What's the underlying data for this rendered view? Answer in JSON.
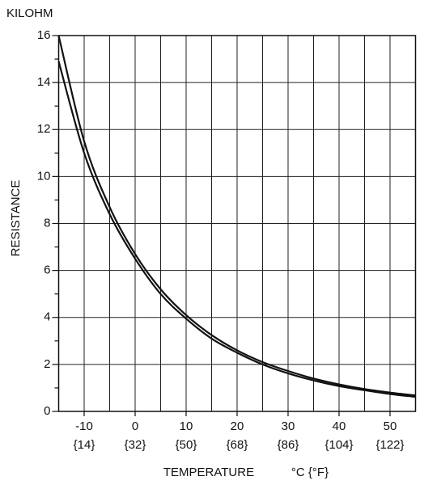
{
  "chart_data": {
    "type": "line",
    "title": "KILOHM",
    "y_label": "RESISTANCE",
    "x_label": "TEMPERATURE",
    "x_unit": "°C {°F}",
    "x": [
      -15,
      -10,
      -5,
      0,
      5,
      10,
      15,
      20,
      25,
      30,
      35,
      40,
      45,
      50,
      55
    ],
    "series": [
      {
        "color": "#111111",
        "values": [
          16.0,
          11.5,
          8.7,
          6.7,
          5.2,
          4.1,
          3.25,
          2.6,
          2.1,
          1.72,
          1.4,
          1.15,
          0.95,
          0.8,
          0.68
        ]
      },
      {
        "color": "#111111",
        "values": [
          14.9,
          11.0,
          8.4,
          6.5,
          5.0,
          3.95,
          3.1,
          2.5,
          2.0,
          1.62,
          1.32,
          1.08,
          0.9,
          0.74,
          0.62
        ]
      }
    ],
    "xlim": [
      -15,
      55
    ],
    "xticks": [
      -10,
      0,
      10,
      20,
      30,
      40,
      50
    ],
    "xtick_secondary_labels": [
      "{14}",
      "{32}",
      "{50}",
      "{68}",
      "{86}",
      "{104}",
      "{122}"
    ],
    "x_grid": [
      -10,
      -5,
      0,
      5,
      10,
      15,
      20,
      25,
      30,
      35,
      40,
      45,
      50
    ],
    "ylim": [
      0,
      16
    ],
    "yticks": [
      0,
      2,
      4,
      6,
      8,
      10,
      12,
      14,
      16
    ],
    "y_minor_ticks": [
      1,
      3,
      5,
      7,
      9,
      11,
      13,
      15
    ],
    "grid": true
  }
}
